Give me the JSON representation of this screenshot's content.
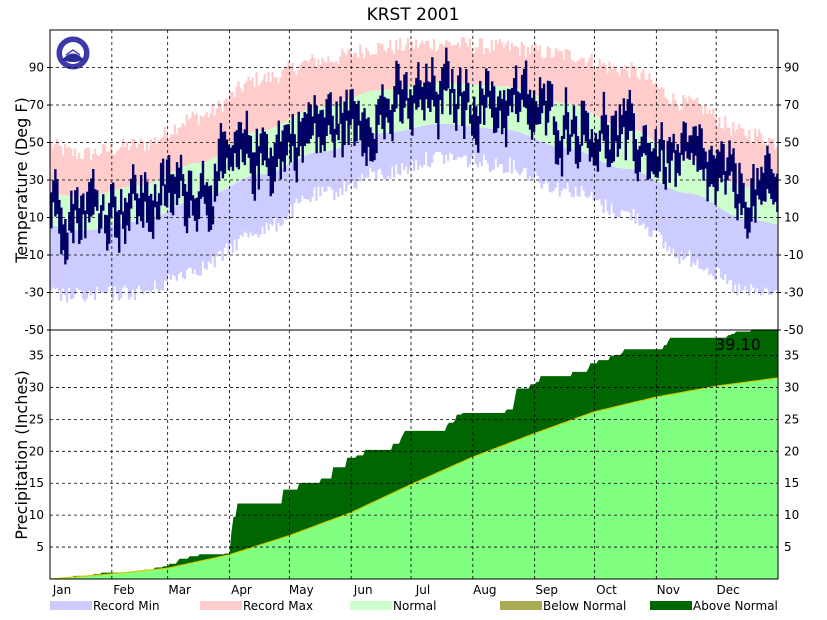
{
  "chart_data": [
    {
      "type": "area",
      "title": "KRST 2001",
      "ylabel": "Temperature (Deg F)",
      "ylim": [
        -50,
        110
      ],
      "yticks": [
        -50,
        -30,
        -10,
        10,
        30,
        50,
        70,
        90
      ],
      "grid": true,
      "months": [
        "Jan",
        "Feb",
        "Mar",
        "Apr",
        "May",
        "Jun",
        "Jul",
        "Aug",
        "Sep",
        "Oct",
        "Nov",
        "Dec"
      ],
      "month_mid_day": [
        15,
        45,
        74,
        105,
        135,
        166,
        196,
        227,
        258,
        288,
        319,
        349
      ],
      "record_max_monthly": [
        42,
        47,
        62,
        82,
        92,
        99,
        101,
        99,
        95,
        87,
        69,
        53
      ],
      "record_min_monthly": [
        -30,
        -28,
        -15,
        5,
        24,
        35,
        44,
        40,
        27,
        14,
        -10,
        -28
      ],
      "normal_high_monthly": [
        21,
        27,
        39,
        56,
        69,
        78,
        82,
        80,
        71,
        58,
        41,
        26
      ],
      "normal_low_monthly": [
        3,
        8,
        20,
        33,
        45,
        55,
        60,
        57,
        47,
        36,
        23,
        9
      ],
      "observed_monthly_avg": [
        15,
        18,
        27,
        44,
        58,
        66,
        74,
        71,
        61,
        50,
        38,
        22
      ],
      "observed_daily_range_approx": 22,
      "series_colors": {
        "record_min": "#ccccff",
        "record_max": "#ffcccc",
        "normal": "#ccffcc",
        "observed": "#000066"
      }
    },
    {
      "type": "area",
      "ylabel": "Precipitation (Inches)",
      "ylim": [
        0,
        39
      ],
      "yticks": [
        5,
        10,
        15,
        20,
        25,
        30,
        35
      ],
      "grid": true,
      "annotation": "39.10",
      "month_end_day": [
        0,
        31,
        59,
        90,
        120,
        151,
        181,
        212,
        243,
        273,
        304,
        334,
        365
      ],
      "normal_cumulative_monthend": [
        0,
        0.8,
        1.7,
        3.8,
        6.8,
        10.4,
        14.8,
        19.1,
        22.8,
        26.2,
        28.5,
        30.2,
        31.5
      ],
      "observed_cumulative_monthend": [
        0,
        1.0,
        2.0,
        4.0,
        14.0,
        19.0,
        23.2,
        26.0,
        30.5,
        33.8,
        36.0,
        37.8,
        39.1
      ],
      "series_colors": {
        "normal": "#80ff80",
        "below_normal": "#aaaa55",
        "above_normal": "#006600"
      }
    }
  ],
  "legend": [
    {
      "label": "Record Min",
      "color": "#ccccff"
    },
    {
      "label": "Record Max",
      "color": "#ffcccc"
    },
    {
      "label": "Normal",
      "color": "#ccffcc"
    },
    {
      "label": "Below Normal",
      "color": "#aaaa55"
    },
    {
      "label": "Above Normal",
      "color": "#006600"
    }
  ]
}
